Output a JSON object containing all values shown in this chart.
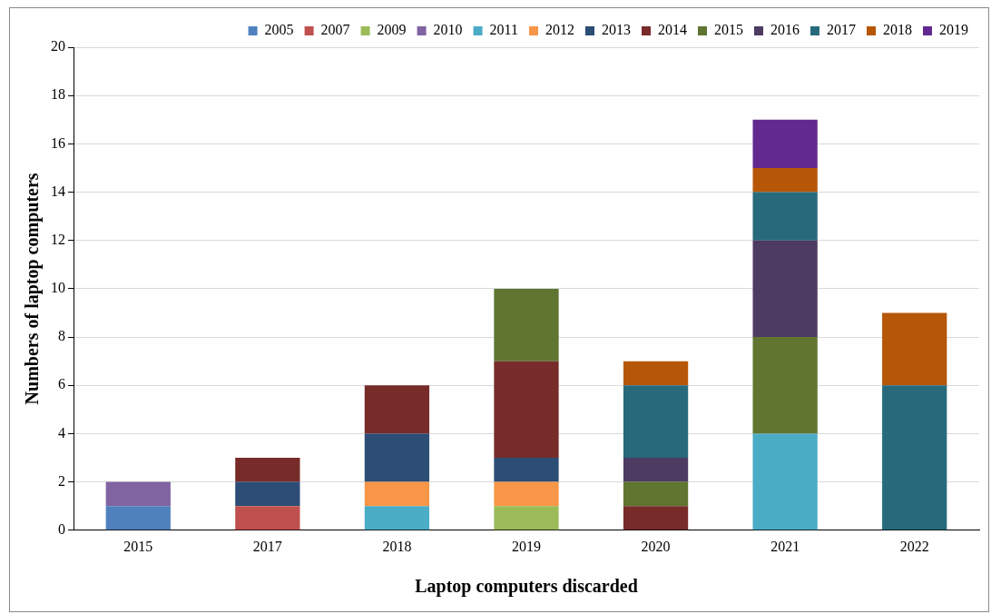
{
  "chart_data": {
    "type": "bar",
    "stacked": true,
    "xlabel": "Laptop computers discarded",
    "ylabel": "Numbers of laptop computers",
    "categories": [
      "2015",
      "2017",
      "2018",
      "2019",
      "2020",
      "2021",
      "2022"
    ],
    "series": [
      {
        "name": "2005",
        "color": "#4f81bd",
        "values": [
          1,
          null,
          null,
          null,
          null,
          null,
          null
        ]
      },
      {
        "name": "2007",
        "color": "#c0504d",
        "values": [
          null,
          1,
          null,
          null,
          null,
          null,
          null
        ]
      },
      {
        "name": "2009",
        "color": "#9bbb59",
        "values": [
          null,
          null,
          null,
          1,
          null,
          null,
          null
        ]
      },
      {
        "name": "2010",
        "color": "#8064a2",
        "values": [
          1,
          null,
          null,
          null,
          null,
          null,
          null
        ]
      },
      {
        "name": "2011",
        "color": "#4bacc6",
        "values": [
          null,
          null,
          1,
          null,
          null,
          4,
          null
        ]
      },
      {
        "name": "2012",
        "color": "#f79646",
        "values": [
          null,
          null,
          1,
          1,
          null,
          null,
          null
        ]
      },
      {
        "name": "2013",
        "color": "#2c4d75",
        "values": [
          null,
          1,
          2,
          1,
          null,
          null,
          null
        ]
      },
      {
        "name": "2014",
        "color": "#772c2a",
        "values": [
          null,
          1,
          2,
          4,
          1,
          null,
          null
        ]
      },
      {
        "name": "2015",
        "color": "#5f7530",
        "values": [
          null,
          null,
          null,
          3,
          1,
          4,
          null
        ]
      },
      {
        "name": "2016",
        "color": "#4d3b62",
        "values": [
          null,
          null,
          null,
          null,
          1,
          4,
          null
        ]
      },
      {
        "name": "2017",
        "color": "#276a7c",
        "values": [
          null,
          null,
          null,
          null,
          3,
          2,
          6
        ]
      },
      {
        "name": "2018",
        "color": "#b65708",
        "values": [
          null,
          null,
          null,
          null,
          1,
          1,
          3
        ]
      },
      {
        "name": "2019",
        "color": "#622a90",
        "values": [
          null,
          null,
          null,
          null,
          null,
          2,
          null
        ]
      }
    ],
    "ylim": [
      0,
      20
    ],
    "yticks": [
      0,
      2,
      4,
      6,
      8,
      10,
      12,
      14,
      16,
      18,
      20
    ],
    "grid": "y",
    "legend": "top"
  }
}
